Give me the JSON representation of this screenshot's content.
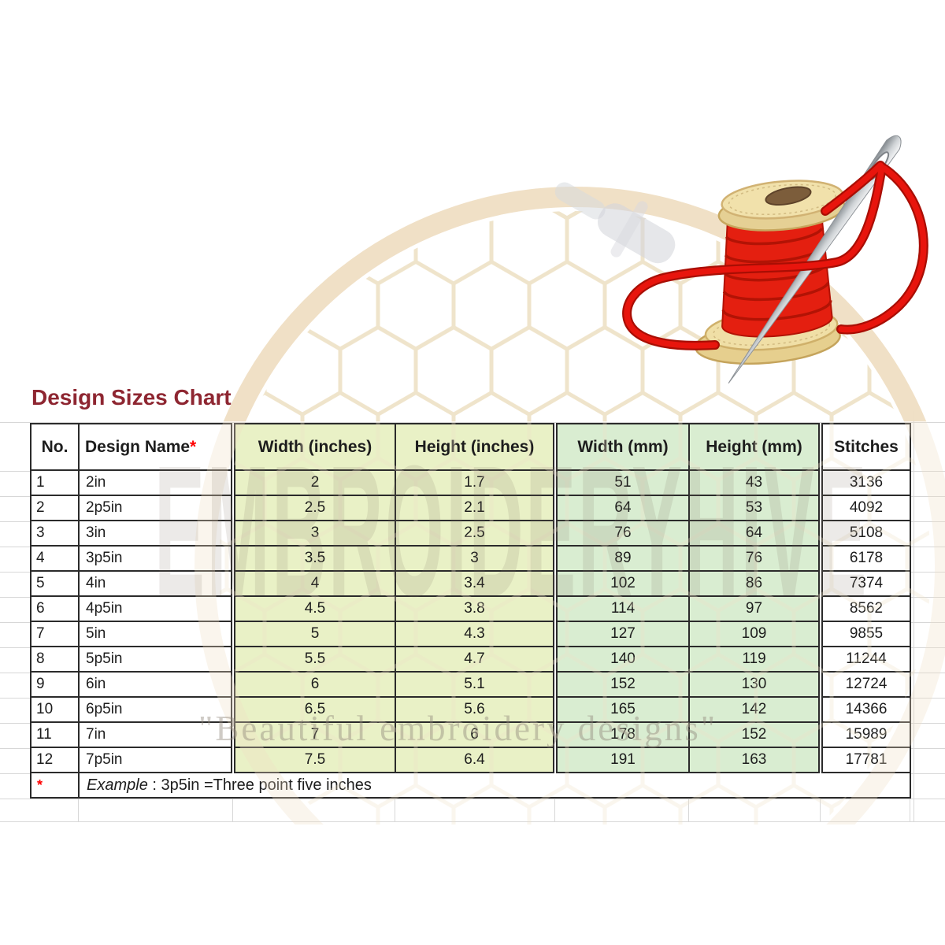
{
  "title": "Design Sizes Chart",
  "watermark": {
    "brand": "EMBROIDERYHIVE",
    "tagline": "\"Beautiful embroidery designs\""
  },
  "graphic": {
    "description": "red thread spool with silver sewing needle and looping red thread",
    "background": "embroidery hoop with honeycomb mesh and hoop screw, faint tan watermark"
  },
  "table": {
    "header": {
      "no": "No.",
      "design_name": "Design Name",
      "asterisk": "*",
      "width_in": "Width (inches)",
      "height_in": "Height (inches)",
      "width_mm": "Width (mm)",
      "height_mm": "Height (mm)",
      "stitches": "Stitches"
    },
    "footnote": {
      "marker": "*",
      "example_label": "Example",
      "rest": " : 3p5in =Three point five inches"
    }
  },
  "chart_data": {
    "type": "table",
    "title": "Design Sizes Chart",
    "columns": [
      "No.",
      "Design Name*",
      "Width (inches)",
      "Height (inches)",
      "Width (mm)",
      "Height (mm)",
      "Stitches"
    ],
    "rows": [
      [
        "1",
        "2in",
        "2",
        "1.7",
        "51",
        "43",
        "3136"
      ],
      [
        "2",
        "2p5in",
        "2.5",
        "2.1",
        "64",
        "53",
        "4092"
      ],
      [
        "3",
        "3in",
        "3",
        "2.5",
        "76",
        "64",
        "5108"
      ],
      [
        "4",
        "3p5in",
        "3.5",
        "3",
        "89",
        "76",
        "6178"
      ],
      [
        "5",
        "4in",
        "4",
        "3.4",
        "102",
        "86",
        "7374"
      ],
      [
        "6",
        "4p5in",
        "4.5",
        "3.8",
        "114",
        "97",
        "8562"
      ],
      [
        "7",
        "5in",
        "5",
        "4.3",
        "127",
        "109",
        "9855"
      ],
      [
        "8",
        "5p5in",
        "5.5",
        "4.7",
        "140",
        "119",
        "11244"
      ],
      [
        "9",
        "6in",
        "6",
        "5.1",
        "152",
        "130",
        "12724"
      ],
      [
        "10",
        "6p5in",
        "6.5",
        "5.6",
        "165",
        "142",
        "14366"
      ],
      [
        "11",
        "7in",
        "7",
        "6",
        "178",
        "152",
        "15989"
      ],
      [
        "12",
        "7p5in",
        "7.5",
        "6.4",
        "191",
        "163",
        "17781"
      ]
    ],
    "footnote": "* Example : 3p5in =Three point five inches"
  },
  "colors": {
    "title": "#8e2631",
    "cell_green_inches": "#e9f1c6",
    "cell_green_mm": "#d9edd1",
    "table_border": "#2b2b2b",
    "asterisk_red": "#ff0000",
    "thread_red": "#e8150d",
    "spool_tan": "#f0dfa6",
    "needle_silver": "#cfd3d6",
    "hoop_watermark_tan": "#f0dfc4"
  }
}
